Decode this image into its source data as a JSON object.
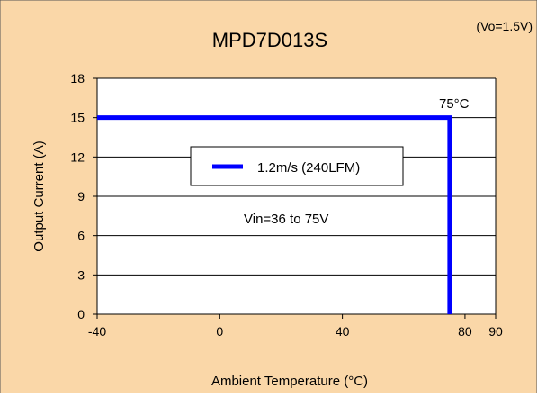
{
  "colors": {
    "background": "#FAD7A8",
    "plot_area": "#FFFFFF",
    "series": "#0000FF",
    "grid": "#000000"
  },
  "chart_data": {
    "type": "line",
    "title": "MPD7D013S",
    "subtitle": "(Vo=1.5V)",
    "xlabel": "Ambient Temperature (°C)",
    "ylabel": "Output Current (A)",
    "xlim": [
      -40,
      90
    ],
    "ylim": [
      0,
      18
    ],
    "x_ticks": [
      -40,
      0,
      40,
      80,
      90
    ],
    "y_ticks": [
      0,
      3,
      6,
      9,
      12,
      15,
      18
    ],
    "grid": "horizontal",
    "legend_position": "center",
    "series": [
      {
        "name": "1.2m/s (240LFM)",
        "x": [
          -40,
          75,
          75
        ],
        "y": [
          15,
          15,
          0
        ]
      }
    ],
    "annotations": [
      {
        "text": "75°C",
        "x": 75,
        "y": 15
      },
      {
        "text": "Vin=36 to 75V",
        "x": 5,
        "y": 7.5
      }
    ]
  }
}
